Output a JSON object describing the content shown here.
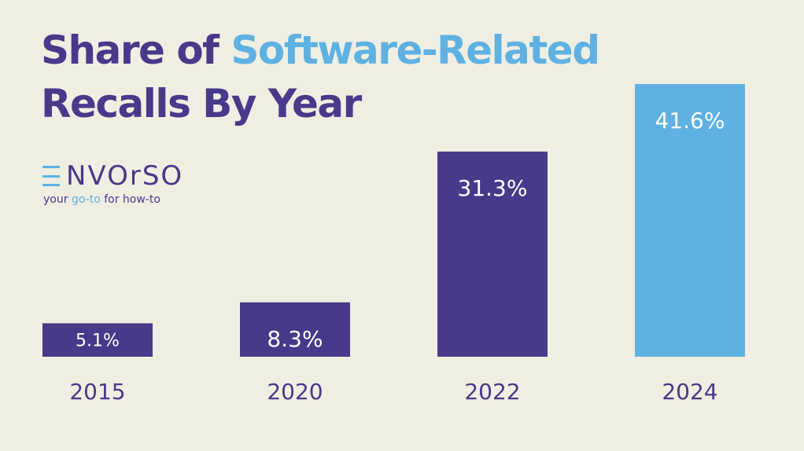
{
  "title": {
    "part1": "Share of ",
    "part2": "Software-Related",
    "part3": "Recalls By Year"
  },
  "brand": {
    "name": "NVOrSO",
    "tagline_a": "your ",
    "tagline_b": "go-to",
    "tagline_c": " for how-to"
  },
  "colors": {
    "primary": "#48398a",
    "accent": "#5fb1e2",
    "background": "#efeee2"
  },
  "chart_data": {
    "type": "bar",
    "title": "Share of Software-Related Recalls By Year",
    "categories": [
      "2015",
      "2020",
      "2022",
      "2024"
    ],
    "values": [
      5.1,
      8.3,
      31.3,
      41.6
    ],
    "labels": [
      "5.1%",
      "8.3%",
      "31.3%",
      "41.6%"
    ],
    "colors": [
      "#48398a",
      "#48398a",
      "#48398a",
      "#5fb1e2"
    ],
    "xlabel": "",
    "ylabel": "",
    "ylim": [
      0,
      41.6
    ],
    "grid": false,
    "legend": "none"
  }
}
